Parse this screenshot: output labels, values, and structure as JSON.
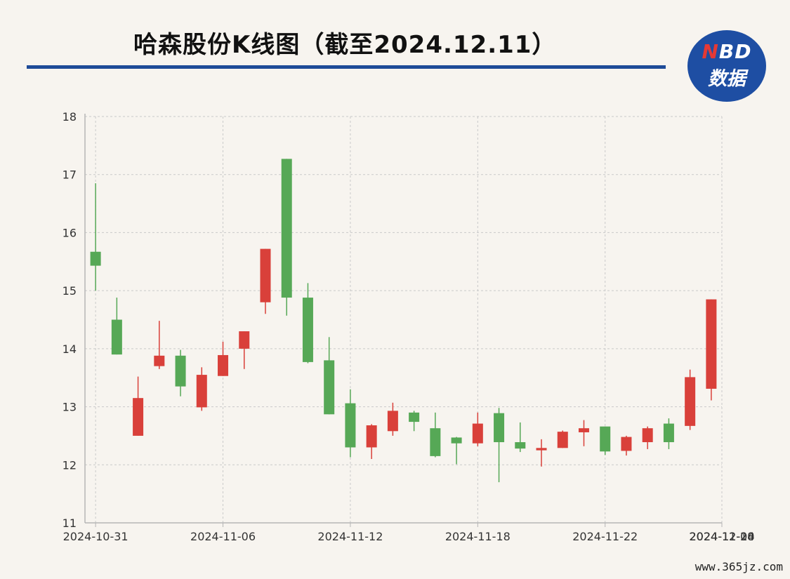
{
  "header": {
    "title": "哈森股份K线图（截至2024.12.11）"
  },
  "logo": {
    "top_n": "N",
    "top_rest": "BD",
    "bottom": "数据"
  },
  "footer": {
    "source": "www.365jz.com"
  },
  "colors": {
    "up": "#d9403a",
    "down": "#56a856",
    "grid": "#c9c9c9",
    "axis": "#b5b5b5",
    "title_rule": "#1f4b98"
  },
  "chart_data": {
    "type": "candlestick",
    "ylim": [
      11,
      18
    ],
    "yticks": [
      11,
      12,
      13,
      14,
      15,
      16,
      17,
      18
    ],
    "x_tick_labels": [
      "2024-10-31",
      "2024-11-06",
      "2024-11-12",
      "2024-11-18",
      "2024-11-22",
      "2024-11-28",
      "2024-12-04",
      "2024-12-10"
    ],
    "grid": "dashed",
    "candles": [
      {
        "date": "2024-10-31",
        "open": 15.67,
        "close": 15.43,
        "high": 16.85,
        "low": 15.0
      },
      {
        "date": "2024-11-01",
        "open": 14.5,
        "close": 13.9,
        "high": 14.88,
        "low": 13.9
      },
      {
        "date": "2024-11-04",
        "open": 12.5,
        "close": 13.15,
        "high": 13.52,
        "low": 12.5
      },
      {
        "date": "2024-11-05",
        "open": 13.7,
        "close": 13.88,
        "high": 14.48,
        "low": 13.65
      },
      {
        "date": "2024-11-06",
        "open": 13.88,
        "close": 13.35,
        "high": 13.98,
        "low": 13.18
      },
      {
        "date": "2024-11-07",
        "open": 12.99,
        "close": 13.55,
        "high": 13.68,
        "low": 12.93
      },
      {
        "date": "2024-11-08",
        "open": 13.53,
        "close": 13.89,
        "high": 14.12,
        "low": 13.53
      },
      {
        "date": "2024-11-11",
        "open": 14.0,
        "close": 14.3,
        "high": 14.3,
        "low": 13.65
      },
      {
        "date": "2024-11-12",
        "open": 14.8,
        "close": 15.72,
        "high": 15.72,
        "low": 14.6
      },
      {
        "date": "2024-11-13",
        "open": 17.27,
        "close": 14.88,
        "high": 17.27,
        "low": 14.57
      },
      {
        "date": "2024-11-14",
        "open": 14.88,
        "close": 13.77,
        "high": 15.13,
        "low": 13.75
      },
      {
        "date": "2024-11-15",
        "open": 13.8,
        "close": 12.87,
        "high": 14.2,
        "low": 12.87
      },
      {
        "date": "2024-11-18",
        "open": 13.06,
        "close": 12.3,
        "high": 13.3,
        "low": 12.13
      },
      {
        "date": "2024-11-19",
        "open": 12.3,
        "close": 12.68,
        "high": 12.7,
        "low": 12.1
      },
      {
        "date": "2024-11-20",
        "open": 12.58,
        "close": 12.93,
        "high": 13.07,
        "low": 12.5
      },
      {
        "date": "2024-11-21",
        "open": 12.9,
        "close": 12.74,
        "high": 12.93,
        "low": 12.58
      },
      {
        "date": "2024-11-22",
        "open": 12.63,
        "close": 12.15,
        "high": 12.9,
        "low": 12.13
      },
      {
        "date": "2024-11-25",
        "open": 12.47,
        "close": 12.37,
        "high": 12.48,
        "low": 12.01
      },
      {
        "date": "2024-11-26",
        "open": 12.37,
        "close": 12.71,
        "high": 12.9,
        "low": 12.32
      },
      {
        "date": "2024-11-27",
        "open": 12.89,
        "close": 12.39,
        "high": 12.98,
        "low": 11.7
      },
      {
        "date": "2024-11-28",
        "open": 12.39,
        "close": 12.28,
        "high": 12.73,
        "low": 12.22
      },
      {
        "date": "2024-11-29",
        "open": 12.25,
        "close": 12.29,
        "high": 12.44,
        "low": 11.97
      },
      {
        "date": "2024-12-02",
        "open": 12.29,
        "close": 12.57,
        "high": 12.59,
        "low": 12.29
      },
      {
        "date": "2024-12-03",
        "open": 12.56,
        "close": 12.63,
        "high": 12.77,
        "low": 12.32
      },
      {
        "date": "2024-12-04",
        "open": 12.66,
        "close": 12.23,
        "high": 12.66,
        "low": 12.17
      },
      {
        "date": "2024-12-05",
        "open": 12.24,
        "close": 12.48,
        "high": 12.5,
        "low": 12.16
      },
      {
        "date": "2024-12-06",
        "open": 12.39,
        "close": 12.63,
        "high": 12.66,
        "low": 12.27
      },
      {
        "date": "2024-12-09",
        "open": 12.71,
        "close": 12.39,
        "high": 12.8,
        "low": 12.27
      },
      {
        "date": "2024-12-10",
        "open": 12.67,
        "close": 13.51,
        "high": 13.64,
        "low": 12.6
      },
      {
        "date": "2024-12-11",
        "open": 13.31,
        "close": 14.85,
        "high": 14.85,
        "low": 13.11
      }
    ]
  }
}
